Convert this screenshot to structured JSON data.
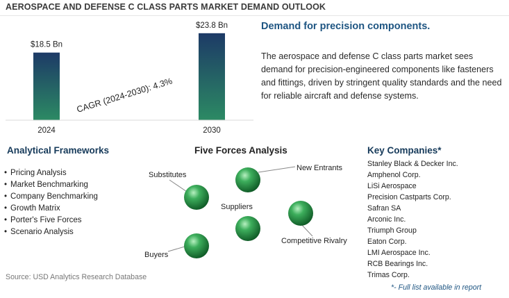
{
  "header": {
    "title": "AEROSPACE AND DEFENSE C CLASS PARTS MARKET DEMAND OUTLOOK"
  },
  "chart_data": {
    "type": "bar",
    "categories": [
      "2024",
      "2030"
    ],
    "values": [
      18.5,
      23.8
    ],
    "value_labels": [
      "$18.5 Bn",
      "$23.8 Bn"
    ],
    "annotation": "CAGR (2024-2030): 4.3%",
    "colors": {
      "bar_top": "#1d3a66",
      "bar_bottom": "#2c8a64"
    }
  },
  "summary": {
    "heading": "Demand for precision components.",
    "text": "The aerospace and defense C class parts market sees demand for precision-engineered components like fasteners and fittings, driven by stringent quality standards and the need for reliable aircraft and defense systems."
  },
  "frameworks": {
    "heading": "Analytical Frameworks",
    "items": [
      "Pricing Analysis",
      "Market Benchmarking",
      "Company Benchmarking",
      "Growth Matrix",
      "Porter's Five Forces",
      "Scenario Analysis"
    ]
  },
  "five_forces": {
    "heading": "Five Forces Analysis",
    "labels": [
      "Substitutes",
      "New Entrants",
      "Suppliers",
      "Competitive Rivalry",
      "Buyers"
    ],
    "sphere_color": "#2e9a4e"
  },
  "companies": {
    "heading": "Key Companies*",
    "items": [
      "Stanley Black & Decker Inc.",
      "Amphenol Corp.",
      "LiSi Aerospace",
      "Precision Castparts Corp.",
      "Safran SA",
      "Arconic Inc.",
      "Triumph Group",
      "Eaton Corp.",
      "LMI Aerospace Inc.",
      "RCB Bearings Inc.",
      "Trimas Corp."
    ],
    "note": "*- Full list available in report"
  },
  "source": "Source: USD Analytics Research Database"
}
